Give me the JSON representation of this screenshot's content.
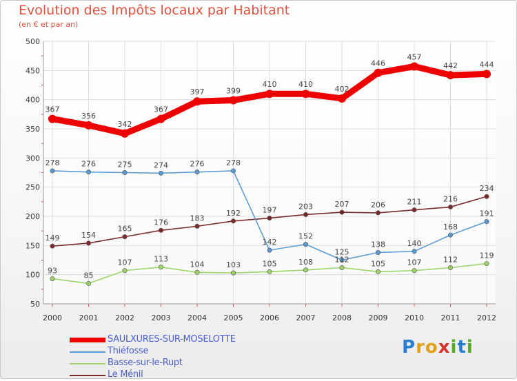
{
  "header": {
    "title": "Evolution des Impôts locaux par Habitant",
    "subtitle": "(en € et par an)"
  },
  "logo": {
    "text": "Proxiti"
  },
  "chart_data": {
    "type": "line",
    "title": "Evolution des Impôts locaux par Habitant",
    "subtitle": "(en € et par an)",
    "xlabel": "",
    "ylabel": "",
    "x": [
      "2000",
      "2001",
      "2002",
      "2003",
      "2004",
      "2005",
      "2006",
      "2007",
      "2008",
      "2009",
      "2010",
      "2011",
      "2012"
    ],
    "ylim": [
      50,
      500
    ],
    "yticks": [
      50,
      100,
      150,
      200,
      250,
      300,
      350,
      400,
      450,
      500
    ],
    "grid": true,
    "legend_position": "bottom-left",
    "series": [
      {
        "name": "SAULXURES-SUR-MOSELOTTE",
        "color": "#ee0000",
        "values": [
          367,
          356,
          342,
          367,
          397,
          399,
          410,
          410,
          402,
          446,
          457,
          442,
          444
        ]
      },
      {
        "name": "Thiéfosse",
        "color": "#5b9bd5",
        "values": [
          278,
          276,
          275,
          274,
          276,
          278,
          142,
          152,
          125,
          138,
          140,
          168,
          191
        ]
      },
      {
        "name": "Basse-sur-le-Rupt",
        "color": "#9bd468",
        "values": [
          93,
          85,
          107,
          113,
          104,
          103,
          105,
          108,
          112,
          105,
          107,
          112,
          119
        ]
      },
      {
        "name": "Le Ménil",
        "color": "#7b2a2a",
        "values": [
          149,
          154,
          165,
          176,
          183,
          192,
          197,
          203,
          207,
          206,
          211,
          216,
          234
        ]
      }
    ]
  }
}
